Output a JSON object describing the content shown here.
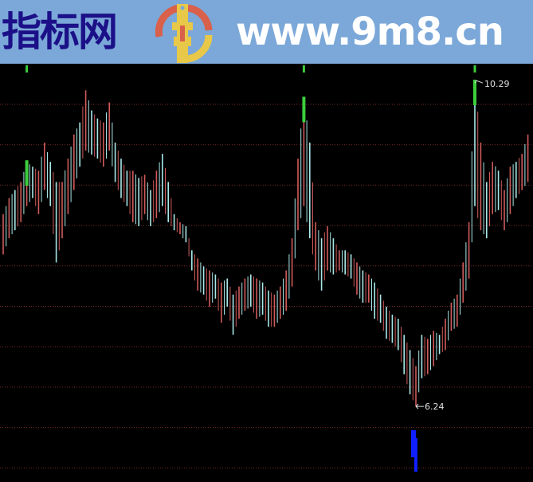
{
  "banner": {
    "site_name": "指标网",
    "site_url": "www.9m8.cn",
    "logo_text": "www.9m8.cn",
    "background_color": "#7ba8d8",
    "site_name_color": "#1c1088"
  },
  "chart_data": {
    "type": "candlestick",
    "title": "",
    "ylim": [
      5.3,
      10.5
    ],
    "grid": true,
    "grid_style": "dotted",
    "colors": {
      "up": "#d05a5a",
      "down": "#a8e8e8",
      "grid": "#7a2a2a",
      "sell_signal": "#3ccf3c",
      "buy_signal": "#1020ff"
    },
    "annotations": [
      {
        "text": "10.29",
        "price": 10.29,
        "index": 80,
        "kind": "high"
      },
      {
        "text": "6.24",
        "price": 6.24,
        "index": 70,
        "kind": "low"
      }
    ],
    "sell_signals": [
      4,
      51,
      80
    ],
    "buy_signals": [
      70
    ],
    "bars": [
      [
        8.63,
        8.13,
        1
      ],
      [
        8.83,
        8.33,
        1
      ],
      [
        8.93,
        8.43,
        0
      ],
      [
        9.03,
        8.53,
        1
      ],
      [
        9.28,
        8.73,
        1
      ],
      [
        9.22,
        8.83,
        0
      ],
      [
        9.17,
        8.63,
        1
      ],
      [
        9.52,
        8.93,
        1
      ],
      [
        9.28,
        8.73,
        0
      ],
      [
        9.03,
        8.03,
        0
      ],
      [
        9.03,
        8.33,
        1
      ],
      [
        9.32,
        8.63,
        1
      ],
      [
        9.62,
        8.93,
        1
      ],
      [
        9.77,
        9.22,
        0
      ],
      [
        10.17,
        9.42,
        1
      ],
      [
        9.92,
        9.37,
        0
      ],
      [
        9.82,
        9.32,
        0
      ],
      [
        9.77,
        9.22,
        1
      ],
      [
        10.02,
        9.42,
        1
      ],
      [
        9.52,
        9.03,
        0
      ],
      [
        9.32,
        8.83,
        0
      ],
      [
        9.17,
        8.73,
        0
      ],
      [
        9.17,
        8.53,
        1
      ],
      [
        9.08,
        8.48,
        0
      ],
      [
        9.12,
        8.63,
        1
      ],
      [
        8.93,
        8.48,
        0
      ],
      [
        9.17,
        8.58,
        1
      ],
      [
        9.38,
        8.73,
        0
      ],
      [
        9.03,
        8.53,
        0
      ],
      [
        8.63,
        8.43,
        0
      ],
      [
        8.53,
        8.38,
        1
      ],
      [
        8.48,
        8.28,
        0
      ],
      [
        8.18,
        7.93,
        0
      ],
      [
        8.08,
        7.68,
        1
      ],
      [
        7.98,
        7.63,
        0
      ],
      [
        7.93,
        7.48,
        1
      ],
      [
        7.88,
        7.58,
        0
      ],
      [
        7.78,
        7.28,
        1
      ],
      [
        7.83,
        7.48,
        0
      ],
      [
        7.63,
        7.13,
        0
      ],
      [
        7.73,
        7.33,
        1
      ],
      [
        7.83,
        7.43,
        1
      ],
      [
        7.88,
        7.48,
        0
      ],
      [
        7.83,
        7.33,
        1
      ],
      [
        7.78,
        7.38,
        0
      ],
      [
        7.68,
        7.23,
        0
      ],
      [
        7.63,
        7.23,
        1
      ],
      [
        7.73,
        7.33,
        1
      ],
      [
        7.93,
        7.43,
        1
      ],
      [
        8.33,
        7.73,
        1
      ],
      [
        9.32,
        8.43,
        1
      ],
      [
        10.07,
        8.73,
        1
      ],
      [
        9.52,
        8.33,
        0
      ],
      [
        8.53,
        7.93,
        1
      ],
      [
        8.33,
        7.68,
        0
      ],
      [
        8.48,
        7.93,
        1
      ],
      [
        8.33,
        7.88,
        0
      ],
      [
        8.18,
        7.93,
        1
      ],
      [
        8.18,
        7.88,
        0
      ],
      [
        8.13,
        7.83,
        0
      ],
      [
        8.03,
        7.63,
        1
      ],
      [
        7.93,
        7.53,
        0
      ],
      [
        7.88,
        7.53,
        1
      ],
      [
        7.78,
        7.33,
        0
      ],
      [
        7.63,
        7.28,
        0
      ],
      [
        7.48,
        7.08,
        0
      ],
      [
        7.38,
        7.03,
        0
      ],
      [
        7.33,
        6.94,
        0
      ],
      [
        7.13,
        6.64,
        0
      ],
      [
        6.94,
        6.39,
        0
      ],
      [
        6.74,
        6.24,
        1
      ],
      [
        7.13,
        6.59,
        0
      ],
      [
        7.08,
        6.64,
        1
      ],
      [
        7.18,
        6.74,
        1
      ],
      [
        7.13,
        6.89,
        0
      ],
      [
        7.33,
        6.94,
        1
      ],
      [
        7.53,
        7.18,
        1
      ],
      [
        7.63,
        7.23,
        1
      ],
      [
        8.03,
        7.53,
        1
      ],
      [
        8.53,
        7.83,
        1
      ],
      [
        10.29,
        8.73,
        0
      ],
      [
        9.52,
        8.43,
        1
      ],
      [
        9.03,
        8.33,
        0
      ],
      [
        9.28,
        8.63,
        1
      ],
      [
        9.17,
        8.68,
        0
      ],
      [
        8.93,
        8.43,
        1
      ],
      [
        9.22,
        8.63,
        1
      ],
      [
        9.28,
        8.83,
        0
      ],
      [
        9.38,
        8.93,
        1
      ],
      [
        9.62,
        9.03,
        1
      ]
    ]
  }
}
